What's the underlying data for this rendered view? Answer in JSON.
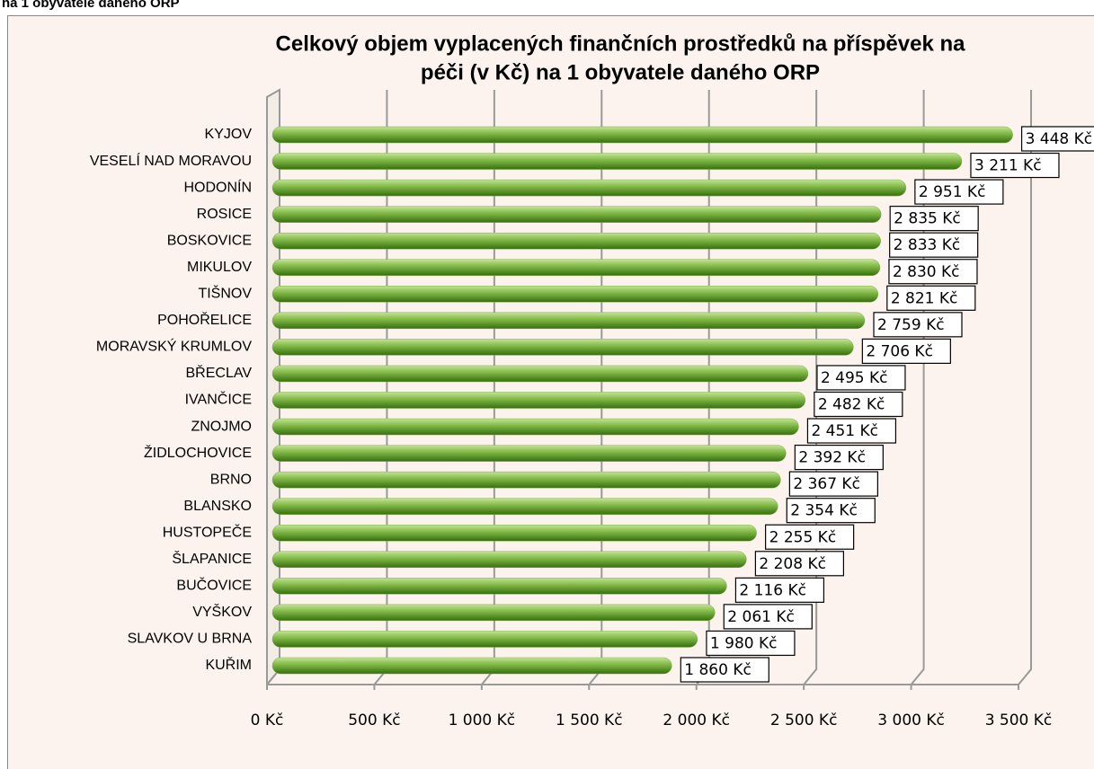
{
  "caption": "na 1 obyvatele daného ORP",
  "chart_data": {
    "type": "bar",
    "orientation": "horizontal",
    "title": [
      "Celkový objem vyplacených finančních prostředků na příspěvek na",
      "péči (v Kč) na 1 obyvatele daného ORP"
    ],
    "categories": [
      "KYJOV",
      "VESELÍ NAD MORAVOU",
      "HODONÍN",
      "ROSICE",
      "BOSKOVICE",
      "MIKULOV",
      "TIŠNOV",
      "POHOŘELICE",
      "MORAVSKÝ KRUMLOV",
      "BŘECLAV",
      "IVANČICE",
      "ZNOJMO",
      "ŽIDLOCHOVICE",
      "BRNO",
      "BLANSKO",
      "HUSTOPEČE",
      "ŠLAPANICE",
      "BUČOVICE",
      "VYŠKOV",
      "SLAVKOV U BRNA",
      "KUŘIM"
    ],
    "values": [
      3448,
      3211,
      2951,
      2835,
      2833,
      2830,
      2821,
      2759,
      2706,
      2495,
      2482,
      2451,
      2392,
      2367,
      2354,
      2255,
      2208,
      2116,
      2061,
      1980,
      1860
    ],
    "value_labels": [
      "3 448 Kč",
      "3 211 Kč",
      "2 951 Kč",
      "2 835 Kč",
      "2 833 Kč",
      "2 830 Kč",
      "2 821 Kč",
      "2 759 Kč",
      "2 706 Kč",
      "2 495 Kč",
      "2 482 Kč",
      "2 451 Kč",
      "2 392 Kč",
      "2 367 Kč",
      "2 354 Kč",
      "2 255 Kč",
      "2 208 Kč",
      "2 116 Kč",
      "2 061 Kč",
      "1 980 Kč",
      "1 860 Kč"
    ],
    "color": "#7cb342",
    "xlim": [
      0,
      3500
    ],
    "xticks": [
      {
        "value": 0,
        "label": "0 Kč"
      },
      {
        "value": 500,
        "label": "500 Kč"
      },
      {
        "value": 1000,
        "label": "1 000 Kč"
      },
      {
        "value": 1500,
        "label": "1 500 Kč"
      },
      {
        "value": 2000,
        "label": "2 000 Kč"
      },
      {
        "value": 2500,
        "label": "2 500 Kč"
      },
      {
        "value": 3000,
        "label": "3 000 Kč"
      },
      {
        "value": 3500,
        "label": "3 500 Kč"
      }
    ],
    "grid": true
  }
}
